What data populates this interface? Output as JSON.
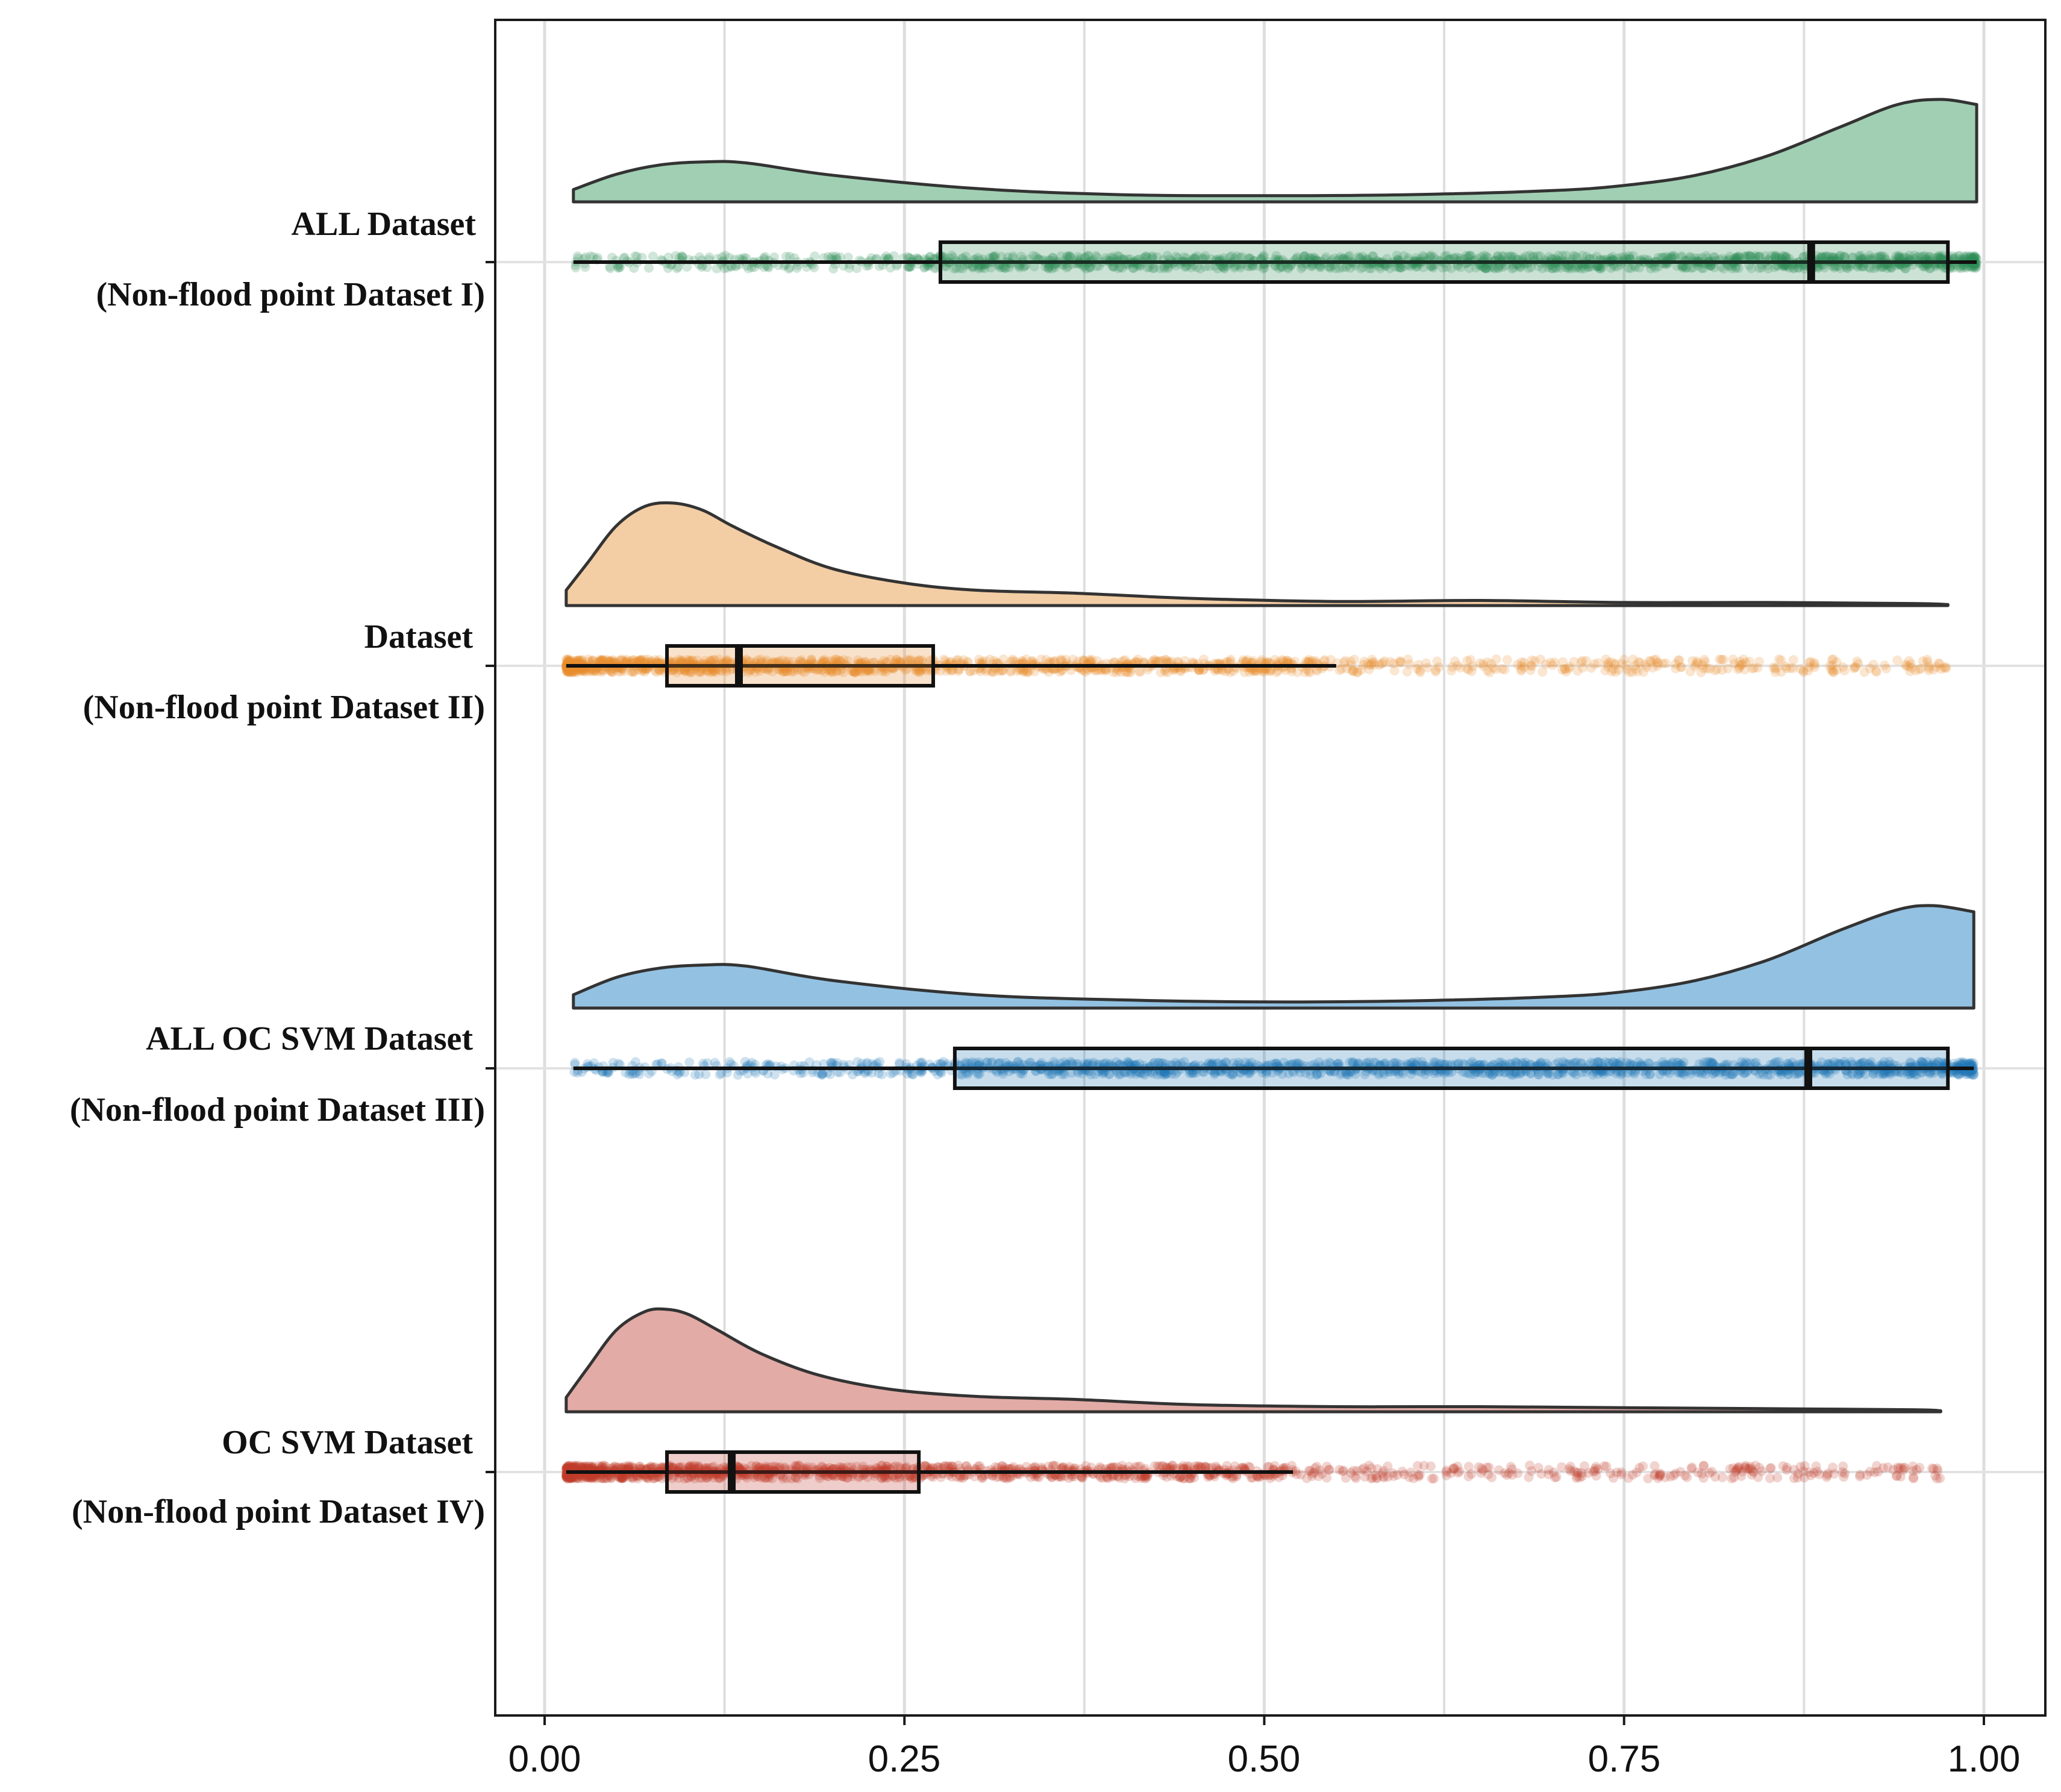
{
  "chart_data": {
    "type": "raincloud",
    "title": "",
    "xlabel": "",
    "ylabel": "",
    "xlim": [
      -0.017,
      1.04
    ],
    "x_ticks": [
      0.0,
      0.25,
      0.5,
      0.75,
      1.0
    ],
    "x_tick_labels": [
      "0.00",
      "0.25",
      "0.50",
      "0.75",
      "1.00"
    ],
    "grid": "vertical major and minor",
    "series": [
      {
        "id": "s1",
        "label_line1": "ALL Dataset",
        "label_line2": "(Non-flood point Dataset I)",
        "color": "#2e8b57",
        "fill": "#a1cfb3",
        "range": [
          0.02,
          0.995
        ],
        "box": {
          "whisker_low": 0.02,
          "q1": 0.275,
          "median": 0.88,
          "q3": 0.975,
          "whisker_high": 0.995
        },
        "density_x": [
          0.02,
          0.05,
          0.08,
          0.11,
          0.14,
          0.2,
          0.3,
          0.4,
          0.5,
          0.6,
          0.7,
          0.75,
          0.8,
          0.85,
          0.9,
          0.94,
          0.97,
          0.995
        ],
        "density_y": [
          0.12,
          0.27,
          0.36,
          0.39,
          0.38,
          0.26,
          0.13,
          0.07,
          0.06,
          0.07,
          0.11,
          0.16,
          0.26,
          0.45,
          0.73,
          0.95,
          1.0,
          0.95
        ],
        "point_density": "dense across full range"
      },
      {
        "id": "s2",
        "label_line1": "Dataset",
        "label_line2": "(Non-flood point Dataset II)",
        "color": "#e88b2e",
        "fill": "#f3cda4",
        "range": [
          0.015,
          0.975
        ],
        "box": {
          "whisker_low": 0.015,
          "q1": 0.085,
          "median": 0.135,
          "q3": 0.27,
          "whisker_high": 0.55
        },
        "density_x": [
          0.015,
          0.03,
          0.05,
          0.07,
          0.09,
          0.11,
          0.13,
          0.16,
          0.2,
          0.25,
          0.3,
          0.37,
          0.45,
          0.55,
          0.65,
          0.75,
          0.85,
          0.95,
          0.975
        ],
        "density_y": [
          0.15,
          0.42,
          0.78,
          0.97,
          1.0,
          0.93,
          0.78,
          0.58,
          0.36,
          0.22,
          0.15,
          0.12,
          0.07,
          0.04,
          0.05,
          0.03,
          0.03,
          0.02,
          0.01
        ],
        "point_density": "dense below 0.55, sparse above"
      },
      {
        "id": "s3",
        "label_line1": "ALL OC SVM Dataset",
        "label_line2": "(Non-flood point Dataset III)",
        "color": "#1f78b4",
        "fill": "#93c1e2",
        "range": [
          0.02,
          0.993
        ],
        "box": {
          "whisker_low": 0.02,
          "q1": 0.285,
          "median": 0.878,
          "q3": 0.975,
          "whisker_high": 0.993
        },
        "density_x": [
          0.02,
          0.05,
          0.08,
          0.11,
          0.14,
          0.2,
          0.3,
          0.4,
          0.5,
          0.6,
          0.7,
          0.75,
          0.8,
          0.85,
          0.9,
          0.94,
          0.965,
          0.993
        ],
        "density_y": [
          0.13,
          0.3,
          0.39,
          0.42,
          0.41,
          0.27,
          0.13,
          0.08,
          0.06,
          0.07,
          0.11,
          0.16,
          0.27,
          0.47,
          0.76,
          0.96,
          1.0,
          0.94
        ],
        "point_density": "dense across full range"
      },
      {
        "id": "s4",
        "label_line1": "OC SVM Dataset",
        "label_line2": "(Non-flood point Dataset IV)",
        "color": "#c0392b",
        "fill": "#e2aba6",
        "range": [
          0.015,
          0.97
        ],
        "box": {
          "whisker_low": 0.015,
          "q1": 0.085,
          "median": 0.13,
          "q3": 0.26,
          "whisker_high": 0.52
        },
        "density_x": [
          0.015,
          0.03,
          0.05,
          0.07,
          0.085,
          0.1,
          0.12,
          0.15,
          0.19,
          0.24,
          0.3,
          0.37,
          0.45,
          0.55,
          0.65,
          0.75,
          0.85,
          0.95,
          0.97
        ],
        "density_y": [
          0.14,
          0.43,
          0.8,
          0.98,
          1.0,
          0.95,
          0.8,
          0.57,
          0.36,
          0.22,
          0.15,
          0.12,
          0.07,
          0.05,
          0.05,
          0.04,
          0.03,
          0.02,
          0.01
        ],
        "point_density": "dense below 0.52, sparse above"
      }
    ]
  }
}
